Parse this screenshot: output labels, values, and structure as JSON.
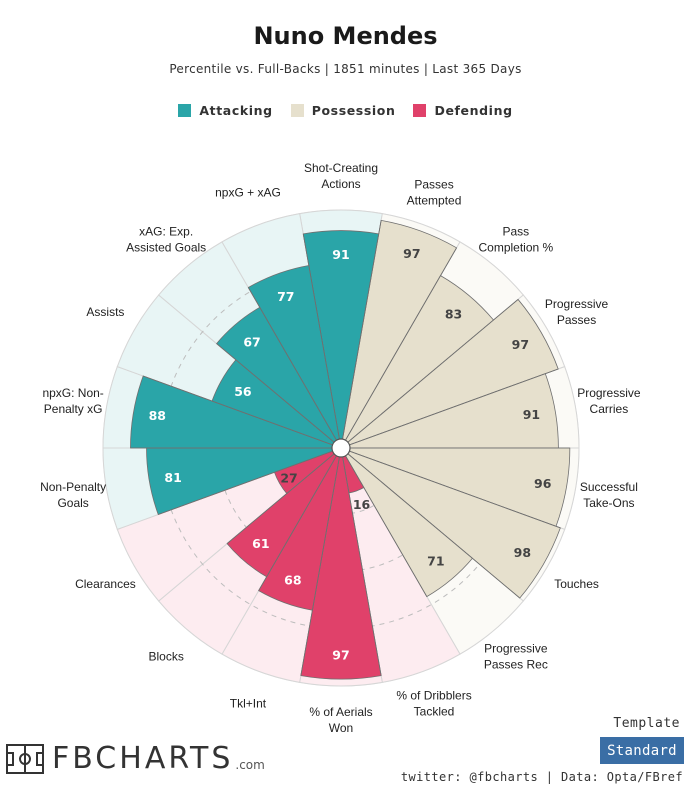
{
  "header": {
    "title": "Nuno Mendes",
    "subtitle": "Percentile vs. Full-Backs | 1851 minutes | Last 365 Days"
  },
  "legend": [
    {
      "label": "Attacking",
      "color": "#2aa5a8"
    },
    {
      "label": "Possession",
      "color": "#e6e0cd"
    },
    {
      "label": "Defending",
      "color": "#e0416a"
    }
  ],
  "footer": {
    "template_label": "Template",
    "template_button": "Standard",
    "credit": "twitter: @fbcharts | Data: Opta/FBref",
    "brand": "FBCHARTS",
    "brand_suffix": ".com"
  },
  "chart_data": {
    "type": "polar-bar",
    "title": "Nuno Mendes",
    "range": [
      0,
      100
    ],
    "categories": [
      {
        "label": "Shot-Creating\nActions",
        "value": 91,
        "group": "Attacking"
      },
      {
        "label": "Passes\nAttempted",
        "value": 97,
        "group": "Possession"
      },
      {
        "label": "Pass\nCompletion %",
        "value": 83,
        "group": "Possession"
      },
      {
        "label": "Progressive\nPasses",
        "value": 97,
        "group": "Possession"
      },
      {
        "label": "Progressive\nCarries",
        "value": 91,
        "group": "Possession"
      },
      {
        "label": "Successful\nTake-Ons",
        "value": 96,
        "group": "Possession"
      },
      {
        "label": "Touches",
        "value": 98,
        "group": "Possession"
      },
      {
        "label": "Progressive\nPasses Rec",
        "value": 71,
        "group": "Possession"
      },
      {
        "label": "% of Dribblers\nTackled",
        "value": 16,
        "group": "Defending"
      },
      {
        "label": "% of Aerials\nWon",
        "value": 97,
        "group": "Defending"
      },
      {
        "label": "Tkl+Int",
        "value": 68,
        "group": "Defending"
      },
      {
        "label": "Blocks",
        "value": 61,
        "group": "Defending"
      },
      {
        "label": "Clearances",
        "value": 27,
        "group": "Defending"
      },
      {
        "label": "Non-Penalty\nGoals",
        "value": 81,
        "group": "Attacking"
      },
      {
        "label": "npxG: Non-\nPenalty xG",
        "value": 88,
        "group": "Attacking"
      },
      {
        "label": "Assists",
        "value": 56,
        "group": "Attacking"
      },
      {
        "label": "xAG: Exp.\nAssisted Goals",
        "value": 67,
        "group": "Attacking"
      },
      {
        "label": "npxG + xAG",
        "value": 77,
        "group": "Attacking"
      }
    ],
    "group_colors": {
      "Attacking": {
        "bar": "#2aa5a8",
        "bg": "#e8f5f5",
        "text": "#ffffff"
      },
      "Possession": {
        "bar": "#e6e0cd",
        "bg": "#fbfaf6",
        "text": "#444444"
      },
      "Defending": {
        "bar": "#e0416a",
        "bg": "#fdecf0",
        "text": "#ffffff"
      }
    }
  }
}
